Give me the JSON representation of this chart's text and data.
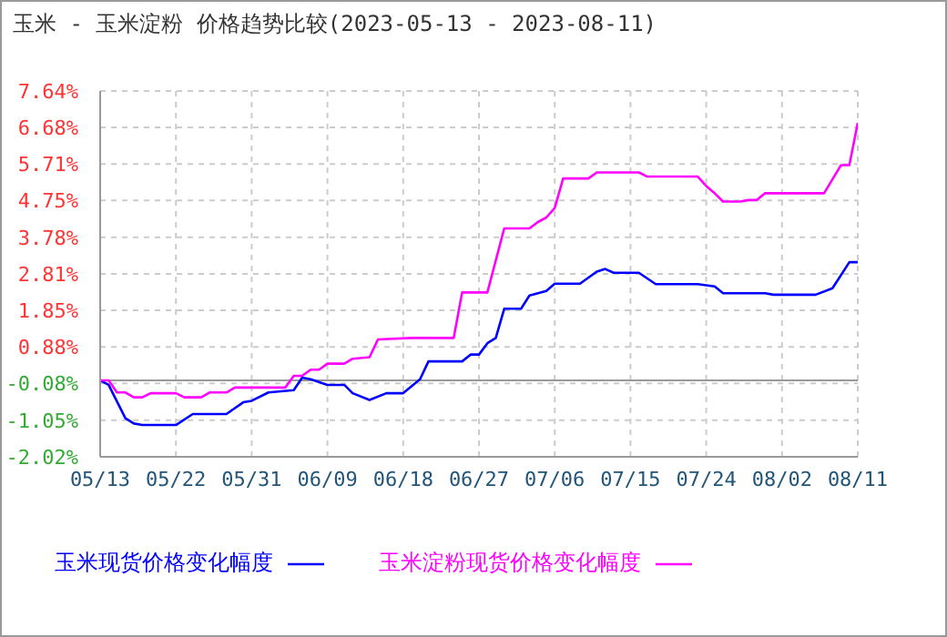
{
  "chart_data": {
    "type": "line",
    "title": "玉米 - 玉米淀粉 价格趋势比较(2023-05-13 - 2023-08-11)",
    "xlim": [
      "2023-05-13",
      "2023-08-11"
    ],
    "xticks": [
      {
        "value": "2023-05-13",
        "label": "05/13"
      },
      {
        "value": "2023-05-22",
        "label": "05/22"
      },
      {
        "value": "2023-05-31",
        "label": "05/31"
      },
      {
        "value": "2023-06-09",
        "label": "06/09"
      },
      {
        "value": "2023-06-18",
        "label": "06/18"
      },
      {
        "value": "2023-06-27",
        "label": "06/27"
      },
      {
        "value": "2023-07-06",
        "label": "07/06"
      },
      {
        "value": "2023-07-15",
        "label": "07/15"
      },
      {
        "value": "2023-07-24",
        "label": "07/24"
      },
      {
        "value": "2023-08-02",
        "label": "08/02"
      },
      {
        "value": "2023-08-11",
        "label": "08/11"
      }
    ],
    "ylim": [
      -2.02,
      7.64
    ],
    "yticks": [
      {
        "value": -2.02,
        "label": "-2.02%"
      },
      {
        "value": -1.05,
        "label": "-1.05%"
      },
      {
        "value": -0.08,
        "label": "-0.08%"
      },
      {
        "value": 0.88,
        "label": "0.88%"
      },
      {
        "value": 1.85,
        "label": "1.85%"
      },
      {
        "value": 2.81,
        "label": "2.81%"
      },
      {
        "value": 3.78,
        "label": "3.78%"
      },
      {
        "value": 4.75,
        "label": "4.75%"
      },
      {
        "value": 5.71,
        "label": "5.71%"
      },
      {
        "value": 6.68,
        "label": "6.68%"
      },
      {
        "value": 7.64,
        "label": "7.64%"
      }
    ],
    "grid": true,
    "legend": "bottom",
    "line_style": "solid",
    "marker": "none",
    "ref_lines": [
      {
        "axis": "y",
        "value": 0,
        "color": "#999999",
        "line_style": "solid"
      }
    ],
    "series": [
      {
        "name": "玉米现货价格变化幅度",
        "color": "#0000ff",
        "x": [
          "2023-05-13",
          "2023-05-14",
          "2023-05-16",
          "2023-05-17",
          "2023-05-18",
          "2023-05-22",
          "2023-05-24",
          "2023-05-28",
          "2023-05-30",
          "2023-05-31",
          "2023-06-02",
          "2023-06-05",
          "2023-06-06",
          "2023-06-07",
          "2023-06-09",
          "2023-06-11",
          "2023-06-12",
          "2023-06-14",
          "2023-06-16",
          "2023-06-18",
          "2023-06-20",
          "2023-06-21",
          "2023-06-25",
          "2023-06-26",
          "2023-06-27",
          "2023-06-28",
          "2023-06-29",
          "2023-06-30",
          "2023-07-02",
          "2023-07-03",
          "2023-07-05",
          "2023-07-06",
          "2023-07-09",
          "2023-07-11",
          "2023-07-12",
          "2023-07-13",
          "2023-07-16",
          "2023-07-18",
          "2023-07-23",
          "2023-07-25",
          "2023-07-26",
          "2023-07-31",
          "2023-08-01",
          "2023-08-06",
          "2023-08-08",
          "2023-08-10",
          "2023-08-11"
        ],
        "values": [
          0,
          -0.12,
          -1.0,
          -1.14,
          -1.18,
          -1.18,
          -0.89,
          -0.89,
          -0.58,
          -0.54,
          -0.32,
          -0.26,
          0.07,
          0.03,
          -0.12,
          -0.12,
          -0.34,
          -0.52,
          -0.34,
          -0.34,
          0.03,
          0.5,
          0.5,
          0.68,
          0.68,
          0.98,
          1.12,
          1.89,
          1.89,
          2.24,
          2.36,
          2.55,
          2.55,
          2.87,
          2.94,
          2.84,
          2.84,
          2.54,
          2.54,
          2.48,
          2.3,
          2.3,
          2.26,
          2.26,
          2.43,
          3.12,
          3.12
        ]
      },
      {
        "name": "玉米淀粉现货价格变化幅度",
        "color": "#ff00ff",
        "x": [
          "2023-05-13",
          "2023-05-14",
          "2023-05-15",
          "2023-05-16",
          "2023-05-17",
          "2023-05-18",
          "2023-05-19",
          "2023-05-22",
          "2023-05-23",
          "2023-05-25",
          "2023-05-26",
          "2023-05-28",
          "2023-05-29",
          "2023-06-04",
          "2023-06-05",
          "2023-06-06",
          "2023-06-07",
          "2023-06-08",
          "2023-06-09",
          "2023-06-11",
          "2023-06-12",
          "2023-06-14",
          "2023-06-15",
          "2023-06-19",
          "2023-06-24",
          "2023-06-25",
          "2023-06-28",
          "2023-06-30",
          "2023-07-03",
          "2023-07-04",
          "2023-07-05",
          "2023-07-06",
          "2023-07-07",
          "2023-07-10",
          "2023-07-11",
          "2023-07-16",
          "2023-07-17",
          "2023-07-23",
          "2023-07-24",
          "2023-07-25",
          "2023-07-26",
          "2023-07-28",
          "2023-07-29",
          "2023-07-30",
          "2023-07-31",
          "2023-08-07",
          "2023-08-09",
          "2023-08-10",
          "2023-08-11"
        ],
        "values": [
          0,
          0,
          -0.32,
          -0.32,
          -0.45,
          -0.45,
          -0.34,
          -0.34,
          -0.45,
          -0.45,
          -0.32,
          -0.32,
          -0.19,
          -0.19,
          0.12,
          0.12,
          0.28,
          0.28,
          0.44,
          0.44,
          0.57,
          0.61,
          1.08,
          1.12,
          1.12,
          2.32,
          2.32,
          4.01,
          4.01,
          4.18,
          4.3,
          4.55,
          5.33,
          5.33,
          5.49,
          5.49,
          5.38,
          5.38,
          5.13,
          4.94,
          4.72,
          4.72,
          4.76,
          4.76,
          4.94,
          4.94,
          5.68,
          5.68,
          6.8
        ]
      }
    ]
  }
}
